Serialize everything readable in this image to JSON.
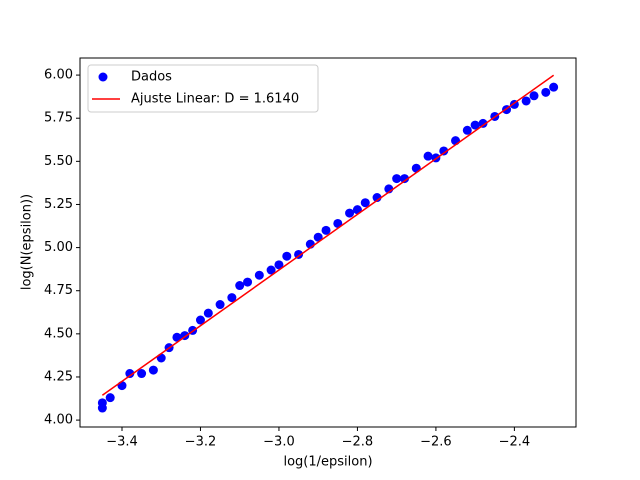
{
  "chart_data": {
    "type": "scatter",
    "xlabel": "log(1/epsilon)",
    "ylabel": "log(N(epsilon))",
    "xlim": [
      -3.507,
      -2.243
    ],
    "ylim": [
      3.96,
      6.099
    ],
    "xticks": [
      {
        "value": -3.4,
        "label": "−3.4"
      },
      {
        "value": -3.2,
        "label": "−3.2"
      },
      {
        "value": -3.0,
        "label": "−3.0"
      },
      {
        "value": -2.8,
        "label": "−2.8"
      },
      {
        "value": -2.6,
        "label": "−2.6"
      },
      {
        "value": -2.4,
        "label": "−2.4"
      }
    ],
    "yticks": [
      {
        "value": 4.0,
        "label": "4.00"
      },
      {
        "value": 4.25,
        "label": "4.25"
      },
      {
        "value": 4.5,
        "label": "4.50"
      },
      {
        "value": 4.75,
        "label": "4.75"
      },
      {
        "value": 5.0,
        "label": "5.00"
      },
      {
        "value": 5.25,
        "label": "5.25"
      },
      {
        "value": 5.5,
        "label": "5.50"
      },
      {
        "value": 5.75,
        "label": "5.75"
      },
      {
        "value": 6.0,
        "label": "6.00"
      }
    ],
    "legend": "upper left",
    "series": [
      {
        "name": "Dados",
        "type": "scatter",
        "color": "#0000ff",
        "x": [
          -3.45,
          -3.45,
          -3.43,
          -3.4,
          -3.38,
          -3.35,
          -3.32,
          -3.3,
          -3.28,
          -3.26,
          -3.24,
          -3.22,
          -3.2,
          -3.18,
          -3.15,
          -3.12,
          -3.1,
          -3.08,
          -3.05,
          -3.02,
          -3.0,
          -2.98,
          -2.95,
          -2.92,
          -2.9,
          -2.88,
          -2.85,
          -2.82,
          -2.8,
          -2.78,
          -2.75,
          -2.72,
          -2.7,
          -2.68,
          -2.65,
          -2.62,
          -2.6,
          -2.58,
          -2.55,
          -2.52,
          -2.5,
          -2.48,
          -2.45,
          -2.42,
          -2.4,
          -2.37,
          -2.35,
          -2.32,
          -2.3
        ],
        "values": [
          4.07,
          4.1,
          4.13,
          4.2,
          4.27,
          4.27,
          4.29,
          4.36,
          4.42,
          4.48,
          4.49,
          4.52,
          4.58,
          4.62,
          4.67,
          4.71,
          4.78,
          4.8,
          4.84,
          4.87,
          4.9,
          4.95,
          4.96,
          5.02,
          5.06,
          5.1,
          5.14,
          5.2,
          5.22,
          5.26,
          5.29,
          5.34,
          5.4,
          5.4,
          5.46,
          5.53,
          5.52,
          5.56,
          5.62,
          5.68,
          5.71,
          5.72,
          5.76,
          5.8,
          5.83,
          5.85,
          5.88,
          5.9,
          5.93
        ]
      },
      {
        "name": "Ajuste Linear: D = 1.6140",
        "type": "line",
        "color": "#ff0000",
        "x": [
          -3.45,
          -2.3
        ],
        "values": [
          4.144,
          5.999
        ]
      }
    ]
  }
}
